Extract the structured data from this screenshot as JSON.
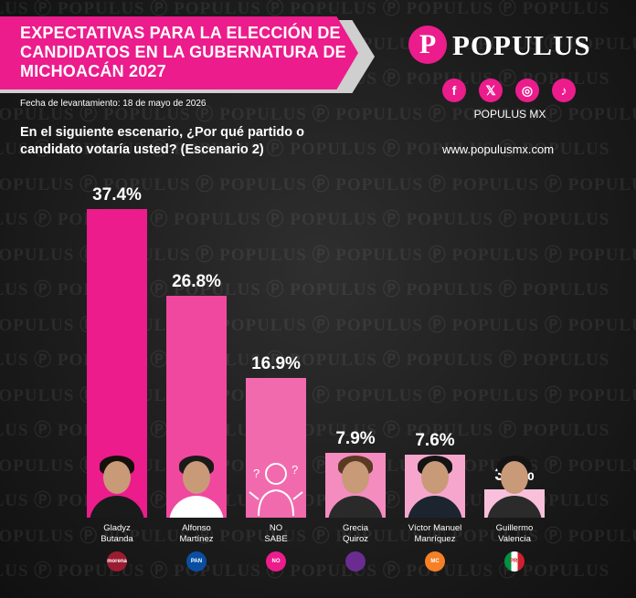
{
  "title": "EXPECTATIVAS PARA LA ELECCIÓN DE CANDIDATOS EN LA GUBERNATURA DE MICHOACÁN 2027",
  "survey_date": "Fecha de levantamiento: 18 de mayo de 2026",
  "question": "En el siguiente escenario, ¿Por qué partido o candidato votaría usted? (Escenario 2)",
  "brand": {
    "logo_mark": "P",
    "logo_text": "POPULUS",
    "handle": "POPULUS MX",
    "website": "www.populusmx.com",
    "social": [
      {
        "icon": "facebook-icon",
        "glyph": "f"
      },
      {
        "icon": "x-icon",
        "glyph": "𝕏"
      },
      {
        "icon": "instagram-icon",
        "glyph": "◎"
      },
      {
        "icon": "tiktok-icon",
        "glyph": "♪"
      }
    ],
    "watermark": "POPULUS"
  },
  "colors": {
    "accent": "#ec1c8c",
    "background": "#1d1d1d"
  },
  "chart_data": {
    "type": "bar",
    "title": "EXPECTATIVAS PARA LA ELECCIÓN DE CANDIDATOS EN LA GUBERNATURA DE MICHOACÁN 2027",
    "categories": [
      "Gladyz Butanda",
      "Alfonso Martínez",
      "NO SABE",
      "Grecia Quiroz",
      "Víctor Manuel Manríquez",
      "Guillermo Valencia"
    ],
    "values": [
      37.4,
      26.8,
      16.9,
      7.9,
      7.6,
      3.4
    ],
    "value_labels": [
      "37.4%",
      "26.8%",
      "16.9%",
      "7.9%",
      "7.6%",
      "3.4%"
    ],
    "name_lines": [
      [
        "Gladyz",
        "Butanda"
      ],
      [
        "Alfonso",
        "Martínez"
      ],
      [
        "NO",
        "SABE"
      ],
      [
        "Grecia",
        "Quiroz"
      ],
      [
        "Víctor Manuel",
        "Manríquez"
      ],
      [
        "Guillermo",
        "Valencia"
      ]
    ],
    "bar_colors": [
      "#ec1c8c",
      "#f0489f",
      "#f26aae",
      "#f48cc0",
      "#f6a6cd",
      "#f8c0da"
    ],
    "parties": [
      {
        "label": "morena",
        "color": "#9b1c31"
      },
      {
        "label": "PAN",
        "color": "#0a4ea2"
      },
      {
        "label": "NO SABE",
        "color": "#ec1c8c"
      },
      {
        "label": "",
        "color": "#6a2c91"
      },
      {
        "label": "MC",
        "color": "#f58025"
      },
      {
        "label": "PRI",
        "color": "#00923f"
      }
    ],
    "ylim": [
      0,
      40
    ],
    "grid": false,
    "legend": "none"
  }
}
